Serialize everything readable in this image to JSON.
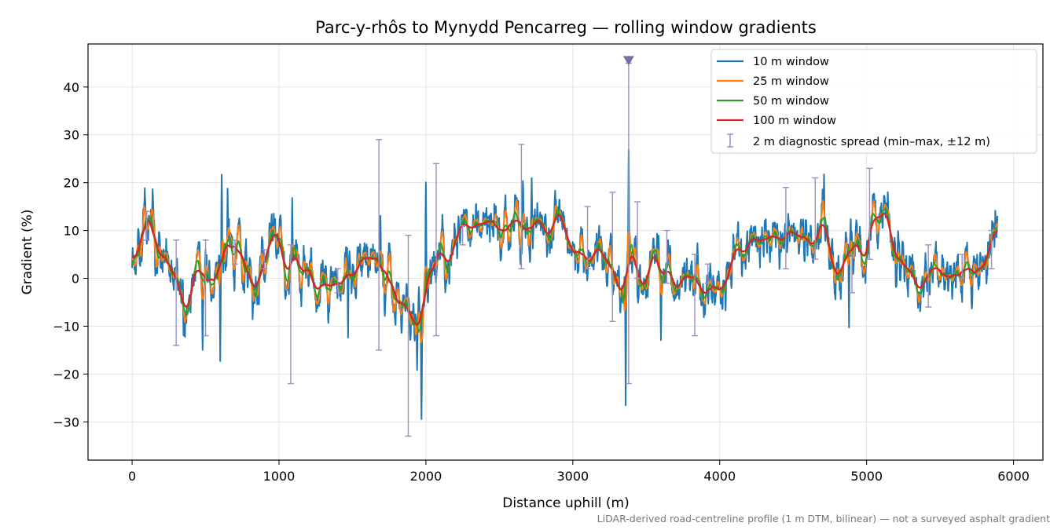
{
  "chart_data": {
    "type": "line",
    "title": "Parc-y-rhôs to Mynydd Pencarreg — rolling window gradients",
    "xlabel": "Distance uphill (m)",
    "ylabel": "Gradient (%)",
    "xlim": [
      -300,
      6200
    ],
    "ylim": [
      -38,
      49
    ],
    "x_ticks": [
      0,
      1000,
      2000,
      3000,
      4000,
      5000,
      6000
    ],
    "x_tick_labels": [
      "0",
      "1000",
      "2000",
      "3000",
      "4000",
      "5000",
      "6000"
    ],
    "y_ticks": [
      -30,
      -20,
      -10,
      0,
      10,
      20,
      30,
      40
    ],
    "y_tick_labels": [
      "−30",
      "−20",
      "−10",
      "0",
      "10",
      "20",
      "30",
      "40"
    ],
    "grid": true,
    "legend_position": "top-right",
    "footnote": "LiDAR-derived road-centreline profile (1 m DTM, bilinear) — not a surveyed asphalt gradient",
    "trend": [
      [
        0,
        2
      ],
      [
        120,
        13
      ],
      [
        200,
        9
      ],
      [
        250,
        3
      ],
      [
        330,
        -8
      ],
      [
        400,
        -3
      ],
      [
        450,
        3
      ],
      [
        550,
        3
      ],
      [
        650,
        7
      ],
      [
        700,
        5
      ],
      [
        850,
        3
      ],
      [
        1000,
        6
      ],
      [
        1050,
        2
      ],
      [
        1200,
        1
      ],
      [
        1300,
        -2
      ],
      [
        1500,
        1
      ],
      [
        1600,
        3
      ],
      [
        1700,
        2
      ],
      [
        1850,
        -5
      ],
      [
        1950,
        -10
      ],
      [
        2000,
        0
      ],
      [
        2100,
        8
      ],
      [
        2300,
        10
      ],
      [
        2500,
        11
      ],
      [
        2700,
        11
      ],
      [
        2850,
        12
      ],
      [
        3000,
        7
      ],
      [
        3200,
        6
      ],
      [
        3300,
        3
      ],
      [
        3500,
        3
      ],
      [
        3600,
        2
      ],
      [
        3800,
        1
      ],
      [
        3950,
        -1
      ],
      [
        4000,
        -1
      ],
      [
        4100,
        8
      ],
      [
        4200,
        6
      ],
      [
        4300,
        9
      ],
      [
        4450,
        11
      ],
      [
        4600,
        10
      ],
      [
        4700,
        10
      ],
      [
        4850,
        2
      ],
      [
        4950,
        6
      ],
      [
        5050,
        14
      ],
      [
        5150,
        12
      ],
      [
        5300,
        1
      ],
      [
        5500,
        1
      ],
      [
        5600,
        0
      ],
      [
        5700,
        2
      ],
      [
        5800,
        4
      ],
      [
        5890,
        10
      ]
    ],
    "series": [
      {
        "name": "10 m window",
        "color": "#1f77b4",
        "window_m": 10
      },
      {
        "name": "25 m window",
        "color": "#ff7f0e",
        "window_m": 25
      },
      {
        "name": "50 m window",
        "color": "#2ca02c",
        "window_m": 50
      },
      {
        "name": "100 m window",
        "color": "#d62728",
        "window_m": 100
      }
    ],
    "spikes_10m": [
      [
        140,
        19
      ],
      [
        350,
        -13
      ],
      [
        480,
        -16
      ],
      [
        600,
        -19
      ],
      [
        610,
        23
      ],
      [
        650,
        20
      ],
      [
        1090,
        18
      ],
      [
        1470,
        -14
      ],
      [
        1690,
        14
      ],
      [
        1720,
        -8
      ],
      [
        1940,
        -20
      ],
      [
        1970,
        -31
      ],
      [
        2000,
        22
      ],
      [
        2660,
        21
      ],
      [
        2720,
        22
      ],
      [
        3360,
        -29
      ],
      [
        3380,
        29
      ],
      [
        3600,
        -14
      ],
      [
        4040,
        -7
      ],
      [
        4710,
        23
      ],
      [
        4880,
        -12
      ],
      [
        5050,
        18
      ],
      [
        5430,
        -4
      ],
      [
        5880,
        12
      ]
    ],
    "diagnostic_spread": {
      "name": "2 m diagnostic spread (min–max, ±12 m)",
      "color": "#9a8fc0",
      "bars": [
        [
          100,
          8,
          14
        ],
        [
          300,
          -14,
          8
        ],
        [
          500,
          -12,
          8
        ],
        [
          700,
          3,
          8
        ],
        [
          900,
          2,
          6
        ],
        [
          1080,
          -22,
          7
        ],
        [
          1400,
          -3,
          2
        ],
        [
          1680,
          -15,
          29
        ],
        [
          1880,
          -33,
          9
        ],
        [
          2070,
          -12,
          24
        ],
        [
          2250,
          7,
          11
        ],
        [
          2650,
          2,
          28
        ],
        [
          3100,
          2,
          15
        ],
        [
          3270,
          -9,
          18
        ],
        [
          3380,
          -22,
          45
        ],
        [
          3440,
          0,
          16
        ],
        [
          3640,
          -1,
          10
        ],
        [
          3830,
          -12,
          5
        ],
        [
          3920,
          -1,
          3
        ],
        [
          4450,
          2,
          19
        ],
        [
          4650,
          4,
          21
        ],
        [
          4900,
          -3,
          5
        ],
        [
          5020,
          4,
          23
        ],
        [
          5420,
          -6,
          7
        ],
        [
          5650,
          0,
          5
        ],
        [
          5850,
          2,
          10
        ]
      ],
      "overflow_marker": {
        "x": 3380,
        "y": 45.5
      }
    }
  }
}
